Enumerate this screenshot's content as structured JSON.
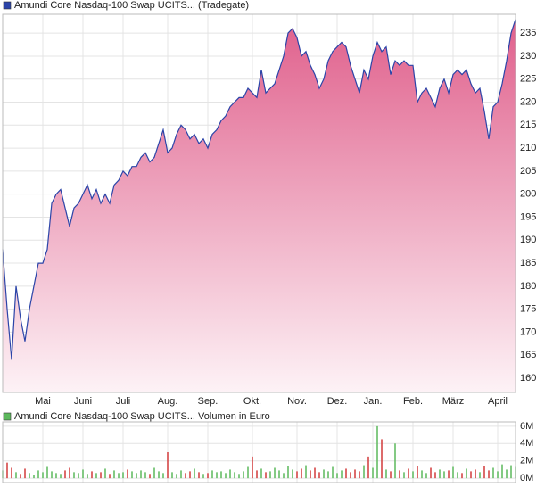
{
  "chart_data": [
    {
      "type": "area",
      "x": [
        0,
        1,
        2,
        3,
        4,
        5,
        6,
        7,
        8,
        9,
        10,
        11,
        12,
        13,
        14,
        15,
        16,
        17,
        18,
        19,
        20,
        21,
        22,
        23,
        24,
        25,
        26,
        27,
        28,
        29,
        30,
        31,
        32,
        33,
        34,
        35,
        36,
        37,
        38,
        39,
        40,
        41,
        42,
        43,
        44,
        45,
        46,
        47,
        48,
        49,
        50,
        51,
        52,
        53,
        54,
        55,
        56,
        57,
        58,
        59,
        60,
        61,
        62,
        63,
        64,
        65,
        66,
        67,
        68,
        69,
        70,
        71,
        72,
        73,
        74,
        75,
        76,
        77,
        78,
        79,
        80,
        81,
        82,
        83,
        84,
        85,
        86,
        87,
        88,
        89,
        90,
        91,
        92,
        93,
        94,
        95,
        96,
        97,
        98,
        99,
        100,
        101,
        102,
        103,
        104,
        105,
        106,
        107,
        108,
        109,
        110,
        111,
        112,
        113,
        114,
        115
      ],
      "series": [
        {
          "name": "Amundi Core Nasdaq-100 Swap UCITS... (Tradegate)",
          "color": "#2b44a8",
          "values": [
            188,
            175,
            164,
            180,
            173,
            168,
            175,
            180,
            185,
            185,
            188,
            198,
            200,
            201,
            197,
            193,
            197,
            198,
            200,
            202,
            199,
            201,
            198,
            200,
            198,
            202,
            203,
            205,
            204,
            206,
            206,
            208,
            209,
            207,
            208,
            211,
            214,
            209,
            210,
            213,
            215,
            214,
            212,
            213,
            211,
            212,
            210,
            213,
            214,
            216,
            217,
            219,
            220,
            221,
            221,
            223,
            222,
            221,
            227,
            222,
            223,
            224,
            227,
            230,
            235,
            236,
            234,
            230,
            231,
            228,
            226,
            223,
            225,
            229,
            231,
            232,
            233,
            232,
            228,
            225,
            222,
            227,
            225,
            230,
            233,
            231,
            232,
            226,
            229,
            228,
            229,
            228,
            228,
            220,
            222,
            223,
            221,
            219,
            223,
            225,
            222,
            226,
            227,
            226,
            227,
            224,
            222,
            223,
            218,
            212,
            219,
            220,
            224,
            229,
            235,
            238
          ]
        }
      ],
      "fill_top": "#e0608c",
      "fill_bottom": "#fdf2f6",
      "xlim": [
        0,
        115
      ],
      "ylim": [
        156.9,
        239.1
      ],
      "yticks": [
        160,
        165,
        170,
        175,
        180,
        185,
        190,
        195,
        200,
        205,
        210,
        215,
        220,
        225,
        230,
        235
      ],
      "xticks": [
        {
          "value": 9,
          "label": "Mai"
        },
        {
          "value": 18,
          "label": "Juni"
        },
        {
          "value": 27,
          "label": "Juli"
        },
        {
          "value": 37,
          "label": "Aug."
        },
        {
          "value": 46,
          "label": "Sep."
        },
        {
          "value": 56,
          "label": "Okt."
        },
        {
          "value": 66,
          "label": "Nov."
        },
        {
          "value": 75,
          "label": "Dez."
        },
        {
          "value": 83,
          "label": "Jan."
        },
        {
          "value": 92,
          "label": "Feb."
        },
        {
          "value": 101,
          "label": "März"
        },
        {
          "value": 111,
          "label": "April"
        }
      ],
      "grid": true
    },
    {
      "type": "bar",
      "x": [
        0,
        1,
        2,
        3,
        4,
        5,
        6,
        7,
        8,
        9,
        10,
        11,
        12,
        13,
        14,
        15,
        16,
        17,
        18,
        19,
        20,
        21,
        22,
        23,
        24,
        25,
        26,
        27,
        28,
        29,
        30,
        31,
        32,
        33,
        34,
        35,
        36,
        37,
        38,
        39,
        40,
        41,
        42,
        43,
        44,
        45,
        46,
        47,
        48,
        49,
        50,
        51,
        52,
        53,
        54,
        55,
        56,
        57,
        58,
        59,
        60,
        61,
        62,
        63,
        64,
        65,
        66,
        67,
        68,
        69,
        70,
        71,
        72,
        73,
        74,
        75,
        76,
        77,
        78,
        79,
        80,
        81,
        82,
        83,
        84,
        85,
        86,
        87,
        88,
        89,
        90,
        91,
        92,
        93,
        94,
        95,
        96,
        97,
        98,
        99,
        100,
        101,
        102,
        103,
        104,
        105,
        106,
        107,
        108,
        109,
        110,
        111,
        112,
        113,
        114,
        115
      ],
      "series": [
        {
          "name": "Amundi Core Nasdaq-100 Swap UCITS... Volumen in Euro",
          "color": "#5cb85c",
          "values": [
            900000,
            1800000,
            1200000,
            700000,
            500000,
            1100000,
            600000,
            400000,
            900000,
            700000,
            1300000,
            800000,
            600000,
            500000,
            900000,
            1200000,
            700000,
            600000,
            1000000,
            500000,
            800000,
            600000,
            700000,
            1100000,
            500000,
            900000,
            600000,
            700000,
            1000000,
            800000,
            600000,
            900000,
            700000,
            500000,
            1200000,
            800000,
            600000,
            3000000,
            700000,
            500000,
            900000,
            600000,
            800000,
            1100000,
            700000,
            500000,
            600000,
            900000,
            700000,
            800000,
            600000,
            1000000,
            700000,
            500000,
            800000,
            1300000,
            2500000,
            900000,
            1100000,
            700000,
            800000,
            1200000,
            900000,
            600000,
            1400000,
            1000000,
            800000,
            1100000,
            1500000,
            900000,
            1200000,
            700000,
            1000000,
            800000,
            1300000,
            600000,
            900000,
            1100000,
            700000,
            1000000,
            800000,
            1500000,
            2500000,
            1200000,
            6000000,
            4500000,
            1000000,
            800000,
            4000000,
            900000,
            700000,
            1100000,
            800000,
            1400000,
            900000,
            600000,
            1200000,
            700000,
            1000000,
            800000,
            900000,
            1300000,
            700000,
            600000,
            1100000,
            800000,
            1000000,
            700000,
            1400000,
            900000,
            1200000,
            800000,
            1600000,
            1000000,
            1500000,
            1300000
          ]
        }
      ],
      "down_color": "#d23a3a",
      "xlim": [
        0,
        115
      ],
      "ylim": [
        -500000,
        6500000
      ],
      "yticks": [
        {
          "value": 0,
          "label": "0M"
        },
        {
          "value": 2000000,
          "label": "2M"
        },
        {
          "value": 4000000,
          "label": "4M"
        },
        {
          "value": 6000000,
          "label": "6M"
        }
      ],
      "xticks": [
        9,
        18,
        27,
        37,
        46,
        56,
        66,
        75,
        83,
        92,
        101,
        111
      ],
      "grid": true
    }
  ]
}
